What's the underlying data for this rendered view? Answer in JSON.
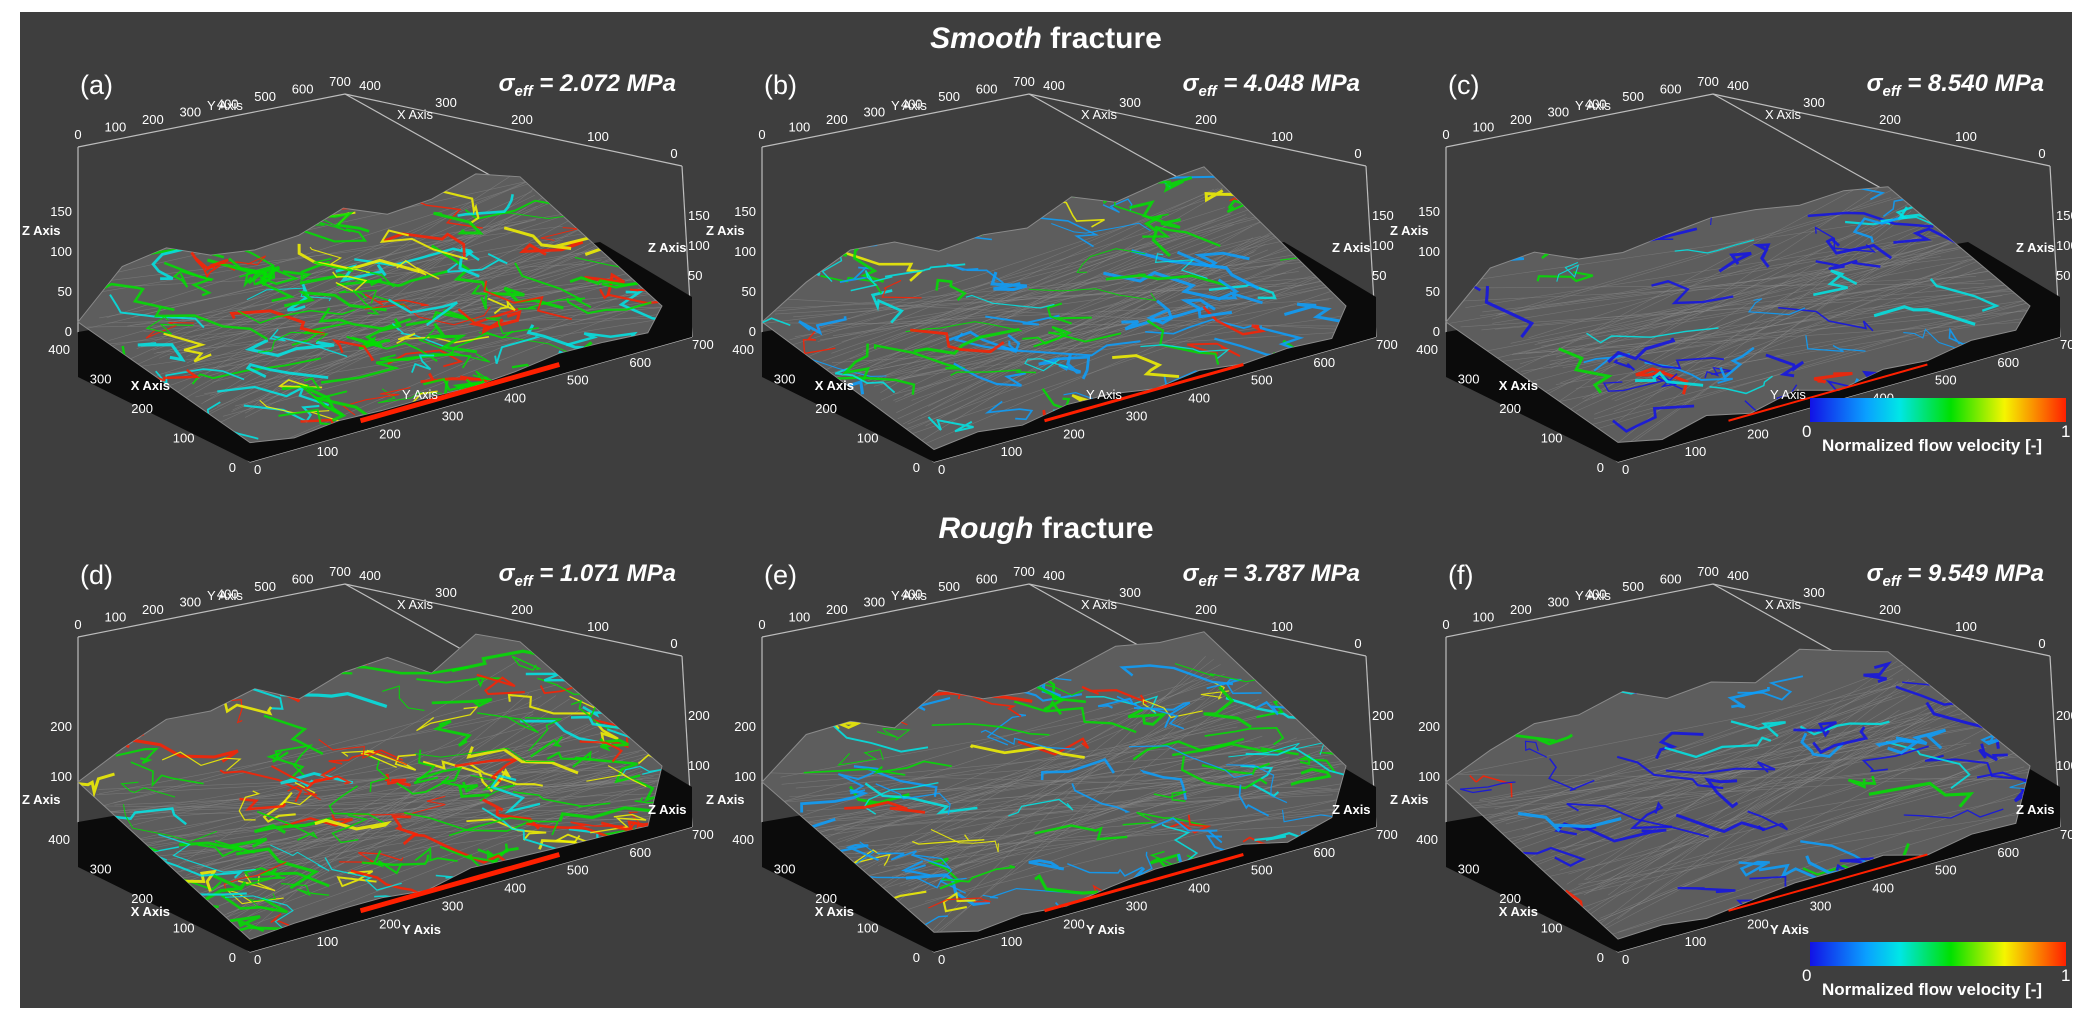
{
  "titles": {
    "smooth_em": "Smooth",
    "smooth_rest": " fracture",
    "rough_em": "Rough",
    "rough_rest": " fracture"
  },
  "axis_names": {
    "x": "X Axis",
    "y": "Y Axis",
    "z": "Z Axis"
  },
  "ticks": {
    "top_y": [
      "0",
      "100",
      "200",
      "300",
      "400",
      "500",
      "600",
      "700"
    ],
    "top_x": [
      "400",
      "300",
      "200",
      "100",
      "0"
    ],
    "front_x": [
      "400",
      "300",
      "200",
      "100",
      "0"
    ],
    "front_y": [
      "0",
      "100",
      "200",
      "300",
      "400",
      "500",
      "600",
      "700"
    ],
    "smooth_left_z": [
      "150",
      "100",
      "50",
      "0"
    ],
    "smooth_right_z": [
      "150",
      "100",
      "50"
    ],
    "rough_left_z": [
      "200",
      "100"
    ],
    "rough_right_z": [
      "200",
      "100"
    ]
  },
  "panels": [
    {
      "label": "(a)",
      "stress_prefix": "σ",
      "stress_sub": "eff",
      "stress_value": " = 2.072 MPa",
      "intensity": 1.0,
      "rough": false
    },
    {
      "label": "(b)",
      "stress_prefix": "σ",
      "stress_sub": "eff",
      "stress_value": " = 4.048 MPa",
      "intensity": 0.6,
      "rough": false
    },
    {
      "label": "(c)",
      "stress_prefix": "σ",
      "stress_sub": "eff",
      "stress_value": " = 8.540 MPa",
      "intensity": 0.3,
      "rough": false
    },
    {
      "label": "(d)",
      "stress_prefix": "σ",
      "stress_sub": "eff",
      "stress_value": " = 1.071 MPa",
      "intensity": 1.0,
      "rough": true
    },
    {
      "label": "(e)",
      "stress_prefix": "σ",
      "stress_sub": "eff",
      "stress_value": " = 3.787 MPa",
      "intensity": 0.6,
      "rough": true
    },
    {
      "label": "(f)",
      "stress_prefix": "σ",
      "stress_sub": "eff",
      "stress_value": " = 9.549 MPa",
      "intensity": 0.3,
      "rough": true
    }
  ],
  "colorbar": {
    "min": "0",
    "max": "1",
    "title": "Normalized flow velocity [-]",
    "colors": [
      "#1212e6",
      "#0aa0ff",
      "#00e6e6",
      "#00e000",
      "#f5f500",
      "#ff2000"
    ]
  }
}
